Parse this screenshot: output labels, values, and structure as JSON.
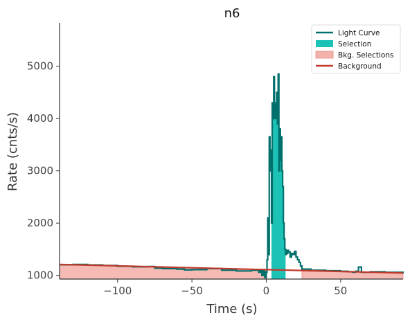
{
  "chart_data": {
    "type": "line",
    "title": "n6",
    "xlabel": "Time (s)",
    "ylabel": "Rate (cnts/s)",
    "xlim": [
      -139,
      92
    ],
    "ylim": [
      930,
      5830
    ],
    "xticks": [
      -100,
      -50,
      0,
      50
    ],
    "yticks": [
      1000,
      2000,
      3000,
      4000,
      5000
    ],
    "xtick_labels": [
      "−100",
      "−50",
      "0",
      "50"
    ],
    "ytick_labels": [
      "1000",
      "2000",
      "3000",
      "4000",
      "5000"
    ],
    "grid": false,
    "legend_position": "top-right",
    "colors": {
      "light_curve": "#00706c",
      "selection": "#1cc2b6",
      "bkg_selection_fill": "#f4b2ac",
      "bkg_selection_edge": "#e68a82",
      "background": "#c0392b",
      "axis": "#333333"
    },
    "legend": [
      {
        "label": "Light Curve",
        "kind": "line",
        "color_key": "light_curve"
      },
      {
        "label": "Selection",
        "kind": "patch",
        "color_key": "selection"
      },
      {
        "label": "Bkg. Selections",
        "kind": "patch",
        "color_key": "bkg_selection_fill"
      },
      {
        "label": "Background",
        "kind": "line",
        "color_key": "background"
      }
    ],
    "series": [
      {
        "name": "Light Curve",
        "step": true,
        "x": [
          -139,
          -130,
          -120,
          -110,
          -100,
          -90,
          -80,
          -75,
          -70,
          -60,
          -55,
          -50,
          -40,
          -30,
          -20,
          -10,
          -5,
          -4,
          -3,
          -2,
          -1,
          0,
          0.5,
          1,
          1.5,
          2,
          2.5,
          3,
          3.5,
          4,
          4.5,
          5,
          5.5,
          6,
          6.5,
          7,
          7.5,
          8,
          8.5,
          9,
          9.5,
          10,
          10.5,
          11,
          11.5,
          12,
          12.5,
          13,
          13.5,
          14,
          14.5,
          15,
          16,
          17,
          18,
          19,
          20,
          21,
          22,
          23,
          24,
          30,
          40,
          50,
          55,
          58,
          60,
          62,
          64,
          70,
          80,
          92
        ],
        "y": [
          1205,
          1210,
          1200,
          1190,
          1175,
          1165,
          1170,
          1140,
          1130,
          1120,
          1105,
          1110,
          1130,
          1100,
          1085,
          1100,
          1060,
          1110,
          1000,
          1090,
          960,
          1060,
          1300,
          2100,
          1400,
          3650,
          3000,
          3400,
          2000,
          4300,
          4000,
          4800,
          4000,
          4300,
          4000,
          4500,
          3900,
          4850,
          3000,
          3800,
          3200,
          3650,
          3000,
          2700,
          2000,
          1700,
          1500,
          1400,
          1480,
          1420,
          1480,
          1450,
          1350,
          1420,
          1400,
          1460,
          1350,
          1300,
          1250,
          1180,
          1120,
          1100,
          1090,
          1080,
          1070,
          1060,
          1080,
          1160,
          1060,
          1070,
          1060,
          1040
        ]
      },
      {
        "name": "Background",
        "x": [
          -139,
          92
        ],
        "y": [
          1210,
          1045
        ]
      }
    ],
    "selection": {
      "x_start": 3.5,
      "x_end": 13
    },
    "bkg_selections": [
      {
        "x_start": -139,
        "x_end": 0
      },
      {
        "x_start": 24,
        "x_end": 92
      }
    ]
  }
}
